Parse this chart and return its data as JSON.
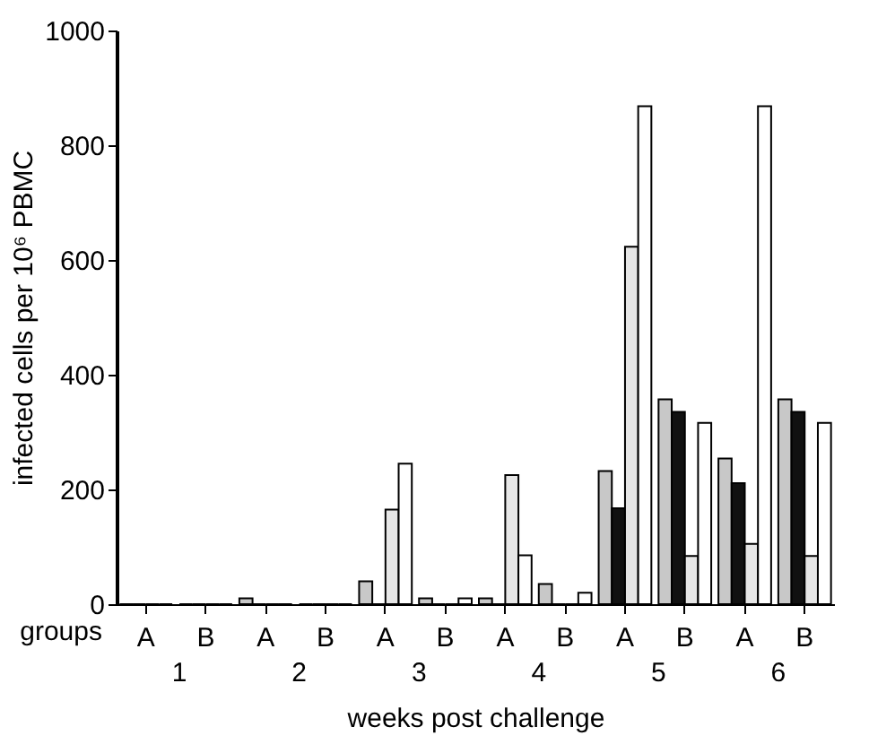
{
  "chart_data": {
    "type": "bar",
    "categories": [
      "A",
      "B",
      "A",
      "B",
      "A",
      "B",
      "A",
      "B",
      "A",
      "B",
      "A",
      "B"
    ],
    "series": [
      {
        "color": "#c8c8c8",
        "values": [
          0,
          0,
          10,
          0,
          40,
          10,
          10,
          35,
          232,
          357,
          254,
          357
        ]
      },
      {
        "color": "#111111",
        "values": [
          0,
          0,
          0,
          0,
          0,
          0,
          0,
          0,
          167,
          335,
          211,
          335
        ]
      },
      {
        "color": "#e6e6e6",
        "values": [
          0,
          0,
          0,
          0,
          165,
          0,
          225,
          0,
          623,
          84,
          105,
          84
        ]
      },
      {
        "color": "#ffffff",
        "values": [
          0,
          0,
          0,
          0,
          245,
          10,
          85,
          20,
          868,
          316,
          868,
          316
        ]
      }
    ],
    "xlabel": "weeks post challenge",
    "ylabel": "infected cells per 10⁶ PBMC",
    "ylim": [
      0,
      1000
    ],
    "yticks": [
      0,
      200,
      400,
      600,
      800,
      1000
    ],
    "annotations": [
      "groups",
      "1",
      "2",
      "3",
      "4",
      "5",
      "6"
    ],
    "grid": false,
    "legend": false
  }
}
